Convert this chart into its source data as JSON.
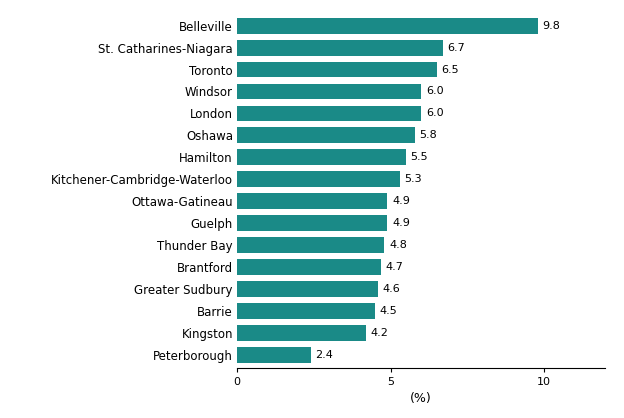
{
  "categories": [
    "Peterborough",
    "Kingston",
    "Barrie",
    "Greater Sudbury",
    "Brantford",
    "Thunder Bay",
    "Guelph",
    "Ottawa-Gatineau",
    "Kitchener-Cambridge-Waterloo",
    "Hamilton",
    "Oshawa",
    "London",
    "Windsor",
    "Toronto",
    "St. Catharines-Niagara",
    "Belleville"
  ],
  "values": [
    2.4,
    4.2,
    4.5,
    4.6,
    4.7,
    4.8,
    4.9,
    4.9,
    5.3,
    5.5,
    5.8,
    6.0,
    6.0,
    6.5,
    6.7,
    9.8
  ],
  "bar_color": "#1a8a87",
  "xlabel": "(%)",
  "xlim": [
    0,
    12
  ],
  "xticks": [
    0,
    5,
    10
  ],
  "value_label_fontsize": 8,
  "category_fontsize": 8.5,
  "xlabel_fontsize": 9,
  "background_color": "#ffffff"
}
